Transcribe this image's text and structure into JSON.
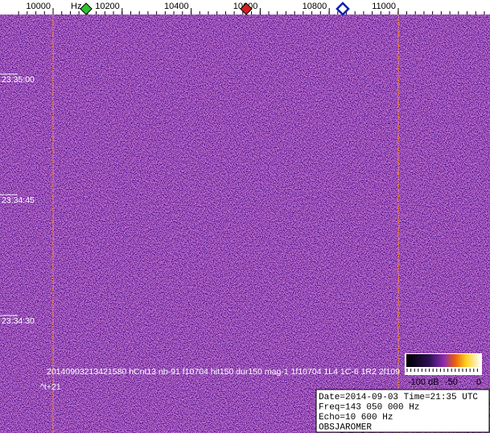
{
  "frequency_axis": {
    "unit": "Hz",
    "ticks": [
      "10000",
      "10200",
      "10400",
      "10600",
      "10800",
      "11000"
    ]
  },
  "time_labels": [
    "23:35:00",
    "23:34:45",
    "23:34:30"
  ],
  "detection_text": "20140903213421580 hCnt13 nb-91 f10704 hit150 dur150 mag-1 1f10704 1L4 1C-6 1R2 2f109",
  "offset_label": "^t+21",
  "color_scale": {
    "labels": [
      "-100 dB",
      "-50",
      "0"
    ]
  },
  "info_box": {
    "lines": [
      "Date=2014-09-03 Time=21:35 UTC",
      "Freq=143 050 000 Hz",
      "Echo=10 600 Hz",
      "OBSJAROMER"
    ]
  }
}
